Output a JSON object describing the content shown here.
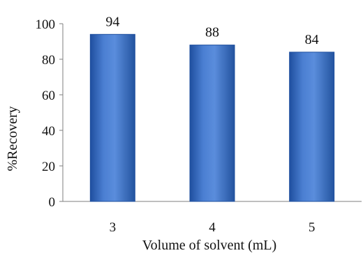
{
  "chart_data": {
    "type": "bar",
    "title": "",
    "xlabel": "Volume of solvent (mL)",
    "ylabel": "%Recovery",
    "categories": [
      "3",
      "4",
      "5"
    ],
    "values": [
      94,
      88,
      84
    ],
    "data_labels": [
      "94",
      "88",
      "84"
    ],
    "ylim": [
      0,
      100
    ],
    "yticks": [
      0,
      20,
      40,
      60,
      80,
      100
    ],
    "grid": false,
    "legend": "none",
    "bar_color": "#3F6FC4",
    "bar_edge_color": "#1E4F9E"
  }
}
